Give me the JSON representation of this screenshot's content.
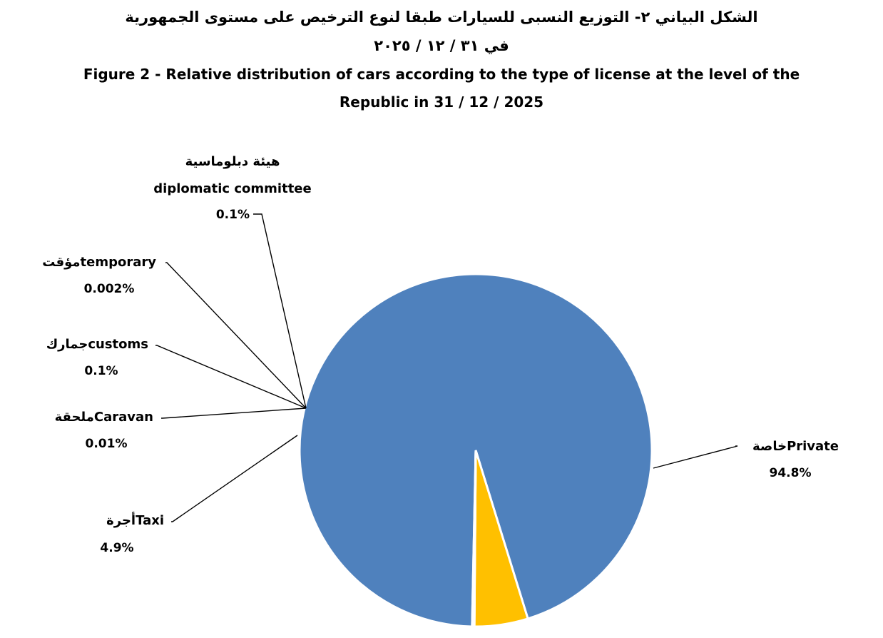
{
  "chart_data": {
    "type": "pie",
    "title_ar_line1": "الشكل البياني ٢-  التوزيع النسبى للسيارات طبقا لنوع الترخيص على مستوى الجمهورية",
    "title_ar_line2": "في ٣١ / ١٢ / ٢٠٢٥",
    "title_en_line1": "Figure 2 - Relative distribution of cars according to the type of license at the level of the",
    "title_en_line2": "Republic in 31 / 12 / 2025",
    "slices": [
      {
        "label_en": "Private",
        "label_ar": "خاصة",
        "value": 94.8,
        "pct": "94.8%",
        "color": "#4f81bd"
      },
      {
        "label_en": "Taxi",
        "label_ar": "أجرة",
        "value": 4.9,
        "pct": "4.9%",
        "color": "#ffc000"
      },
      {
        "label_en": "Caravan",
        "label_ar": "ملحقة",
        "value": 0.01,
        "pct": "0.01%",
        "color": "#9bbb59"
      },
      {
        "label_en": "customs",
        "label_ar": "جمارك",
        "value": 0.1,
        "pct": "0.1%",
        "color": "#8064a2"
      },
      {
        "label_en": "temporary",
        "label_ar": "مؤقت",
        "value": 0.002,
        "pct": "0.002%",
        "color": "#4bacc6"
      },
      {
        "label_ar": "هيئة دبلوماسية",
        "label_en": "diplomatic committee",
        "value": 0.1,
        "pct": "0.1%",
        "color": "#f79646"
      }
    ]
  }
}
